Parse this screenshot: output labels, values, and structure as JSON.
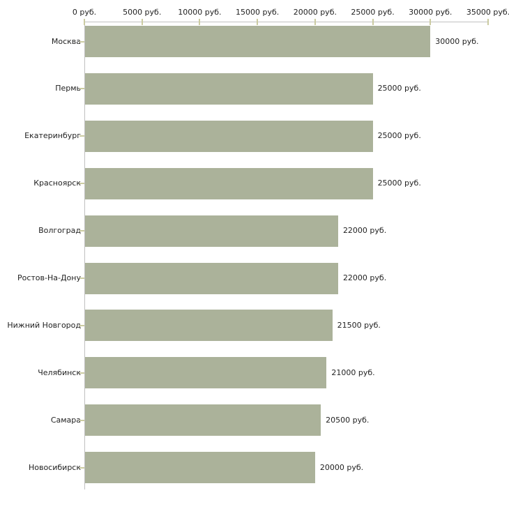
{
  "chart_data": {
    "type": "bar",
    "orientation": "horizontal",
    "title": "",
    "xlabel": "",
    "ylabel": "",
    "categories": [
      "Москва",
      "Пермь",
      "Екатеринбург",
      "Красноярск",
      "Волгоград",
      "Ростов-На-Дону",
      "Нижний Новгород",
      "Челябинск",
      "Самара",
      "Новосибирск"
    ],
    "values": [
      30000,
      25000,
      25000,
      25000,
      22000,
      22000,
      21500,
      21000,
      20500,
      20000
    ],
    "value_labels": [
      "30000 руб.",
      "25000 руб.",
      "25000 руб.",
      "25000 руб.",
      "22000 руб.",
      "22000 руб.",
      "21500 руб.",
      "21000 руб.",
      "20500 руб.",
      "20000 руб."
    ],
    "x_axis": {
      "position": "top",
      "min": 0,
      "max": 35000,
      "ticks": [
        0,
        5000,
        10000,
        15000,
        20000,
        25000,
        30000,
        35000
      ],
      "tick_labels": [
        "0 руб.",
        "5000 руб.",
        "10000 руб.",
        "15000 руб.",
        "20000 руб.",
        "25000 руб.",
        "30000 руб.",
        "35000 руб."
      ]
    },
    "legend": null,
    "grid": false,
    "colors": {
      "bar": "#abb29a",
      "axis_line": "#c0c0c0",
      "tick": "#cbcba1",
      "text": "#222222",
      "background": "#ffffff"
    }
  }
}
